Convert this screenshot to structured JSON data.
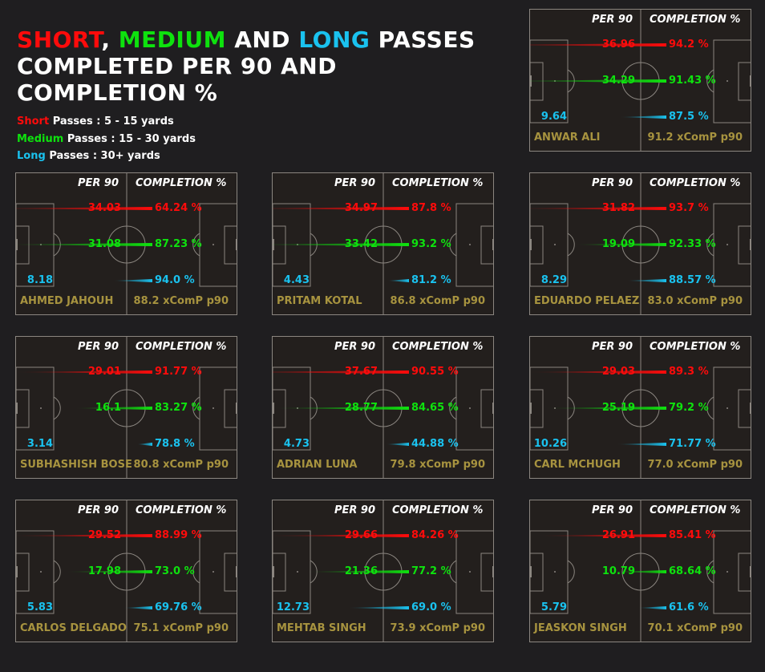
{
  "title": {
    "short_word": "SHORT",
    "sep1": ",",
    "medium_word": "MEDIUM",
    "and_word": "AND",
    "long_word": "LONG",
    "passes_word": "PASSES",
    "line2": "COMPLETED PER 90 AND",
    "line3": "COMPLETION %"
  },
  "legend": [
    {
      "key": "Short",
      "text": "Passes : 5 - 15 yards",
      "color": "#ff0b0b"
    },
    {
      "key": "Medium",
      "text": "Passes : 15 - 30 yards",
      "color": "#0ee20e"
    },
    {
      "key": "Long",
      "text": "Passes : 30+ yards",
      "color": "#1ac2ef"
    }
  ],
  "colors": {
    "short": "#ff0b0b",
    "medium": "#0ee20e",
    "long": "#1ac2ef",
    "player": "#a7933f",
    "background": "#1f1e20",
    "panel": "#231f1d",
    "lines": "#8b8680"
  },
  "headers": {
    "per90": "PER 90",
    "completion": "COMPLETION %"
  },
  "chart_data": {
    "type": "bar",
    "series_names": [
      "Short",
      "Medium",
      "Long"
    ],
    "players": [
      {
        "name": "ANWAR ALI",
        "xcomp": "91.2 xComP p90",
        "short": {
          "per90": "36.96",
          "pct": "94.2 %"
        },
        "medium": {
          "per90": "34.29",
          "pct": "91.43 %"
        },
        "long": {
          "per90": "9.64",
          "pct": "87.5 %"
        }
      },
      {
        "name": "AHMED JAHOUH",
        "xcomp": "88.2 xComP p90",
        "short": {
          "per90": "34.03",
          "pct": "64.24 %"
        },
        "medium": {
          "per90": "31.08",
          "pct": "87.23 %"
        },
        "long": {
          "per90": "8.18",
          "pct": "94.0 %"
        }
      },
      {
        "name": "PRITAM KOTAL",
        "xcomp": "86.8 xComP p90",
        "short": {
          "per90": "34.97",
          "pct": "87.8 %"
        },
        "medium": {
          "per90": "33.42",
          "pct": "93.2 %"
        },
        "long": {
          "per90": "4.43",
          "pct": "81.2 %"
        }
      },
      {
        "name": "EDUARDO PELAEZ",
        "xcomp": "83.0 xComP p90",
        "short": {
          "per90": "31.82",
          "pct": "93.7 %"
        },
        "medium": {
          "per90": "19.09",
          "pct": "92.33 %"
        },
        "long": {
          "per90": "8.29",
          "pct": "88.57 %"
        }
      },
      {
        "name": "SUBHASHISH BOSE",
        "xcomp": "80.8 xComP p90",
        "short": {
          "per90": "29.01",
          "pct": "91.77 %"
        },
        "medium": {
          "per90": "16.1",
          "pct": "83.27 %"
        },
        "long": {
          "per90": "3.14",
          "pct": "78.8 %"
        }
      },
      {
        "name": "ADRIAN LUNA",
        "xcomp": "79.8 xComP p90",
        "short": {
          "per90": "37.67",
          "pct": "90.55 %"
        },
        "medium": {
          "per90": "28.77",
          "pct": "84.65 %"
        },
        "long": {
          "per90": "4.73",
          "pct": "44.88 %"
        }
      },
      {
        "name": "CARL MCHUGH",
        "xcomp": "77.0 xComP p90",
        "short": {
          "per90": "29.03",
          "pct": "89.3 %"
        },
        "medium": {
          "per90": "25.19",
          "pct": "79.2 %"
        },
        "long": {
          "per90": "10.26",
          "pct": "71.77 %"
        }
      },
      {
        "name": "CARLOS DELGADO",
        "xcomp": "75.1 xComP p90",
        "short": {
          "per90": "29.52",
          "pct": "88.99 %"
        },
        "medium": {
          "per90": "17.98",
          "pct": "73.0 %"
        },
        "long": {
          "per90": "5.83",
          "pct": "69.76 %"
        }
      },
      {
        "name": "MEHTAB SINGH",
        "xcomp": "73.9 xComP p90",
        "short": {
          "per90": "29.66",
          "pct": "84.26 %"
        },
        "medium": {
          "per90": "21.36",
          "pct": "77.2 %"
        },
        "long": {
          "per90": "12.73",
          "pct": "69.0 %"
        }
      },
      {
        "name": "JEASKON SINGH",
        "xcomp": "70.1 xComP p90",
        "short": {
          "per90": "26.91",
          "pct": "85.41 %"
        },
        "medium": {
          "per90": "10.79",
          "pct": "68.64 %"
        },
        "long": {
          "per90": "5.79",
          "pct": "61.6 %"
        }
      }
    ]
  }
}
